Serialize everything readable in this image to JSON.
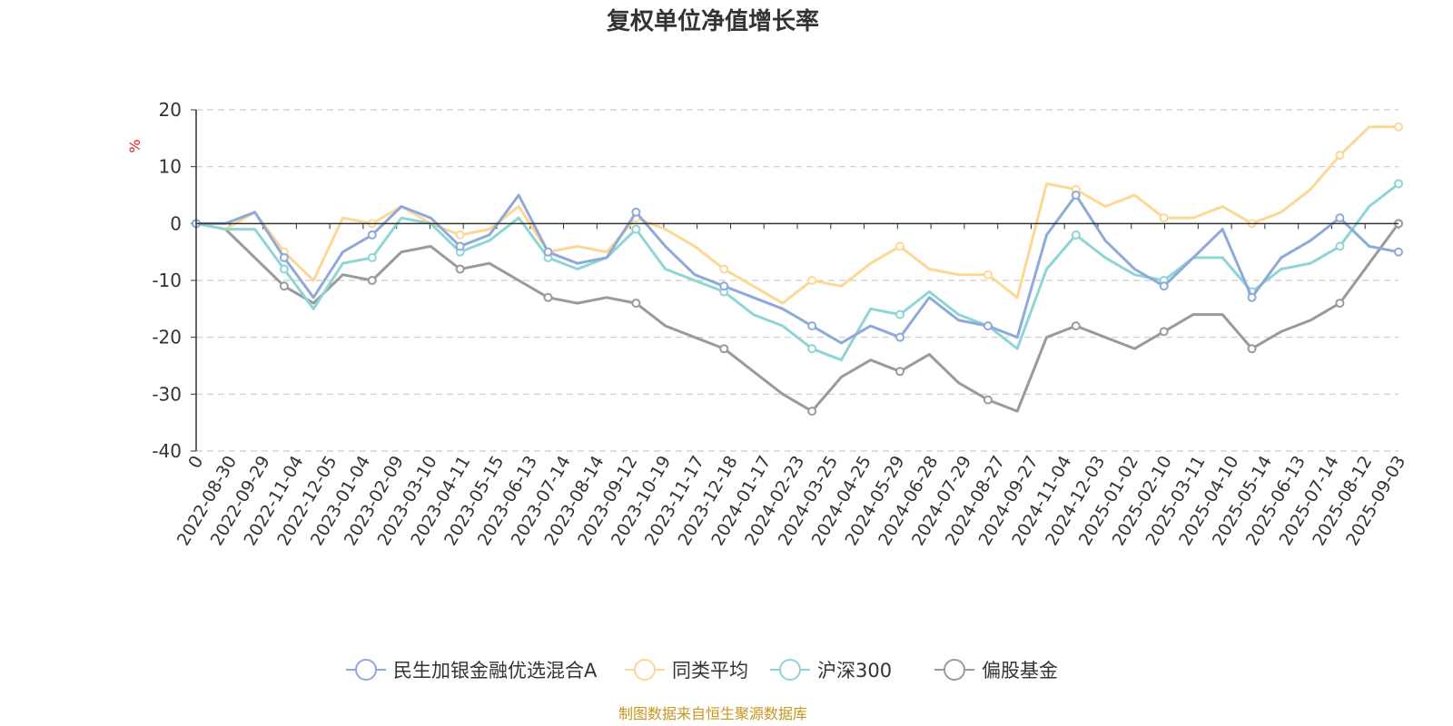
{
  "chart_data": {
    "type": "line",
    "title": "复权单位净值增长率",
    "ylabel": "%",
    "ylim": [
      -40,
      20
    ],
    "yticks": [
      20,
      10,
      0,
      -10,
      -20,
      -30,
      -40
    ],
    "grid": true,
    "legend_position": "bottom",
    "x_tick_labels": [
      "0",
      "2022-08-30",
      "2022-09-29",
      "2022-11-04",
      "2022-12-05",
      "2023-01-04",
      "2023-02-09",
      "2023-03-10",
      "2023-04-11",
      "2023-05-15",
      "2023-06-13",
      "2023-07-14",
      "2023-08-14",
      "2023-09-12",
      "2023-10-19",
      "2023-11-17",
      "2023-12-18",
      "2024-01-17",
      "2024-02-23",
      "2024-03-25",
      "2024-04-25",
      "2024-05-29",
      "2024-06-28",
      "2024-07-29",
      "2024-08-27",
      "2024-09-27",
      "2024-11-04",
      "2024-12-03",
      "2025-01-02",
      "2025-02-10",
      "2025-03-11",
      "2025-04-10",
      "2025-05-14",
      "2025-06-13",
      "2025-07-14",
      "2025-08-12",
      "2025-09-03"
    ],
    "series": [
      {
        "name": "民生加银金融优选混合A",
        "color": "#8fa9d8",
        "values": [
          0,
          0,
          2,
          -6,
          -13,
          -5,
          -2,
          3,
          1,
          -4,
          -2,
          5,
          -5,
          -7,
          -6,
          2,
          -4,
          -9,
          -11,
          -13,
          -15,
          -18,
          -21,
          -18,
          -20,
          -13,
          -17,
          -18,
          -20,
          -2,
          5,
          -3,
          -8,
          -11,
          -6,
          -1,
          -13,
          -6,
          -3,
          1,
          -4,
          -5
        ]
      },
      {
        "name": "同类平均",
        "color": "#fcd894",
        "values": [
          0,
          -1,
          2,
          -5,
          -10,
          1,
          0,
          3,
          0,
          -2,
          -1,
          3,
          -5,
          -4,
          -5,
          1,
          -1,
          -4,
          -8,
          -11,
          -14,
          -10,
          -11,
          -7,
          -4,
          -8,
          -9,
          -9,
          -13,
          7,
          6,
          3,
          5,
          1,
          1,
          3,
          0,
          2,
          6,
          12,
          17,
          17
        ]
      },
      {
        "name": "沪深300",
        "color": "#8ed5d6",
        "values": [
          0,
          -1,
          -1,
          -8,
          -15,
          -7,
          -6,
          1,
          0,
          -5,
          -3,
          1,
          -6,
          -8,
          -6,
          -1,
          -8,
          -10,
          -12,
          -16,
          -18,
          -22,
          -24,
          -15,
          -16,
          -12,
          -16,
          -18,
          -22,
          -8,
          -2,
          -6,
          -9,
          -10,
          -6,
          -6,
          -12,
          -8,
          -7,
          -4,
          3,
          7
        ]
      },
      {
        "name": "偏股基金",
        "color": "#9a9a9a",
        "values": [
          0,
          -1,
          -6,
          -11,
          -14,
          -9,
          -10,
          -5,
          -4,
          -8,
          -7,
          -10,
          -13,
          -14,
          -13,
          -14,
          -18,
          -20,
          -22,
          -26,
          -30,
          -33,
          -27,
          -24,
          -26,
          -23,
          -28,
          -31,
          -33,
          -20,
          -18,
          -20,
          -22,
          -19,
          -16,
          -16,
          -22,
          -19,
          -17,
          -14,
          -7,
          0
        ]
      }
    ]
  },
  "footer": {
    "source_text": "制图数据来自恒生聚源数据库"
  }
}
